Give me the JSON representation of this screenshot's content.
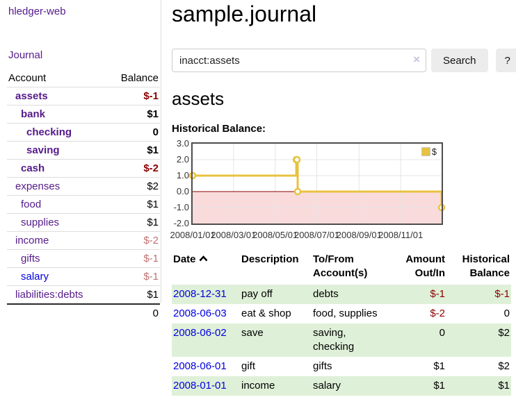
{
  "sidebar": {
    "app_title": "hledger-web",
    "nav": {
      "journal": "Journal"
    },
    "table": {
      "account_header": "Account",
      "balance_header": "Balance"
    },
    "accounts": [
      {
        "name": "assets",
        "balance": "$-1"
      },
      {
        "name": "bank",
        "balance": "$1"
      },
      {
        "name": "checking",
        "balance": "0"
      },
      {
        "name": "saving",
        "balance": "$1"
      },
      {
        "name": "cash",
        "balance": "$-2"
      },
      {
        "name": "expenses",
        "balance": "$2"
      },
      {
        "name": "food",
        "balance": "$1"
      },
      {
        "name": "supplies",
        "balance": "$1"
      },
      {
        "name": "income",
        "balance": "$-2"
      },
      {
        "name": "gifts",
        "balance": "$-1"
      },
      {
        "name": "salary",
        "balance": "$-1"
      },
      {
        "name": "liabilities:debts",
        "balance": "$1"
      }
    ],
    "total_balance": "0"
  },
  "main": {
    "journal_title": "sample.journal",
    "search": {
      "value": "inacct:assets",
      "clear": "×",
      "search_button": "Search",
      "help_button": "?"
    },
    "account_heading": "assets",
    "chart_title": "Historical Balance:"
  },
  "chart_data": {
    "type": "line",
    "mode": "steps",
    "title": "Historical Balance",
    "ylim": [
      -2,
      3
    ],
    "xlim_days": [
      0,
      365
    ],
    "grid_color": "#e4e4e4",
    "zero_line_color": "#8b0000",
    "below_zero_fill": "#fadbdb",
    "legend": {
      "label": "$",
      "position": "top-right"
    },
    "series": [
      {
        "name": "$",
        "color": "#e8c240",
        "points": [
          {
            "date": "2008-01-01",
            "day": 0,
            "y": 1
          },
          {
            "date": "2008-06-01",
            "day": 152,
            "y": 2
          },
          {
            "date": "2008-06-02",
            "day": 153,
            "y": 2
          },
          {
            "date": "2008-06-03",
            "day": 154,
            "y": 0
          },
          {
            "date": "2008-12-31",
            "day": 365,
            "y": -1
          }
        ]
      }
    ],
    "x_ticks": [
      {
        "label": "2008/01/01",
        "day": 0
      },
      {
        "label": "2008/03/01",
        "day": 60
      },
      {
        "label": "2008/05/01",
        "day": 121
      },
      {
        "label": "2008/07/01",
        "day": 182
      },
      {
        "label": "2008/09/01",
        "day": 244
      },
      {
        "label": "2008/11/01",
        "day": 305
      }
    ],
    "y_ticks": [
      {
        "label": "3.0",
        "value": 3
      },
      {
        "label": "2.0",
        "value": 2
      },
      {
        "label": "1.0",
        "value": 1
      },
      {
        "label": "0.0",
        "value": 0
      },
      {
        "label": "-1.0",
        "value": -1
      },
      {
        "label": "-2.0",
        "value": -2
      }
    ]
  },
  "register": {
    "headers": {
      "date": "Date",
      "description": "Description",
      "to_from": "To/From\nAccount(s)",
      "amount": "Amount\nOut/In",
      "balance": "Historical\nBalance"
    },
    "rows": [
      {
        "date": "2008-12-31",
        "description": "pay off",
        "to_from": "debts",
        "amount": "$-1",
        "balance": "$-1"
      },
      {
        "date": "2008-06-03",
        "description": "eat & shop",
        "to_from": "food, supplies",
        "amount": "$-2",
        "balance": "0"
      },
      {
        "date": "2008-06-02",
        "description": "save",
        "to_from": "saving,\nchecking",
        "amount": "0",
        "balance": "$2"
      },
      {
        "date": "2008-06-01",
        "description": "gift",
        "to_from": "gifts",
        "amount": "$1",
        "balance": "$2"
      },
      {
        "date": "2008-01-01",
        "description": "income",
        "to_from": "salary",
        "amount": "$1",
        "balance": "$1"
      }
    ]
  }
}
